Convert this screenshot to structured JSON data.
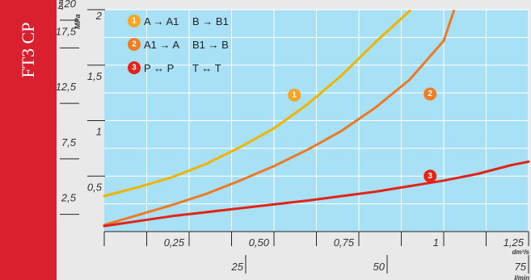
{
  "sidebar": {
    "title": "FT3 CP"
  },
  "chart_data": {
    "type": "line",
    "units": {
      "bar": "bar",
      "mpa": "MPa",
      "dm3s": "dm³/s",
      "lmin": "l/min"
    },
    "x_dm3s_ticks": [
      "0,25",
      "0,50",
      "0,75",
      "1",
      "1,25"
    ],
    "x_lmin_ticks": [
      "25",
      "50",
      "75"
    ],
    "y_bar_ticks": [
      "20",
      "17,5",
      "12,5",
      "7,5",
      "2,5"
    ],
    "y_mpa_ticks": [
      "2",
      "1,5",
      "1",
      "0,5"
    ],
    "xlim_dm3s": [
      0,
      1.25
    ],
    "ylim_bar": [
      0,
      20
    ],
    "grid": true,
    "legend": [
      {
        "badge": "1",
        "color": "#f5a623",
        "items": [
          "A → A1",
          "B → B1"
        ]
      },
      {
        "badge": "2",
        "color": "#ef7d22",
        "items": [
          "A1 → A",
          "B1 → B"
        ]
      },
      {
        "badge": "3",
        "color": "#e2231a",
        "items": [
          "P ↔ P",
          "T ↔ T"
        ]
      }
    ],
    "series": [
      {
        "badge": "1",
        "color": "#f0b400",
        "x": [
          0,
          0.1,
          0.2,
          0.3,
          0.4,
          0.5,
          0.6,
          0.7,
          0.8,
          0.9
        ],
        "y": [
          3.2,
          4.0,
          4.9,
          6.1,
          7.6,
          9.3,
          11.5,
          14.1,
          17.1,
          19.9
        ]
      },
      {
        "badge": "2",
        "color": "#ec7a25",
        "x": [
          0,
          0.1,
          0.2,
          0.3,
          0.4,
          0.5,
          0.6,
          0.7,
          0.8,
          0.9,
          1.0,
          1.03
        ],
        "y": [
          0.6,
          1.5,
          2.4,
          3.4,
          4.6,
          5.9,
          7.4,
          9.1,
          11.2,
          13.7,
          17.2,
          19.9
        ]
      },
      {
        "badge": "3",
        "color": "#e2231a",
        "x": [
          0,
          0.2,
          0.4,
          0.6,
          0.8,
          1.0,
          1.1,
          1.2,
          1.25
        ],
        "y": [
          0.5,
          1.4,
          2.1,
          2.8,
          3.6,
          4.6,
          5.2,
          6.0,
          6.3
        ]
      }
    ],
    "badges": [
      {
        "label": "1",
        "color": "#f5a623",
        "x": 0.56,
        "y": 12.3
      },
      {
        "label": "2",
        "color": "#ef7d22",
        "x": 0.96,
        "y": 12.4
      },
      {
        "label": "3",
        "color": "#e2231a",
        "x": 0.96,
        "y": 5.0
      }
    ]
  }
}
